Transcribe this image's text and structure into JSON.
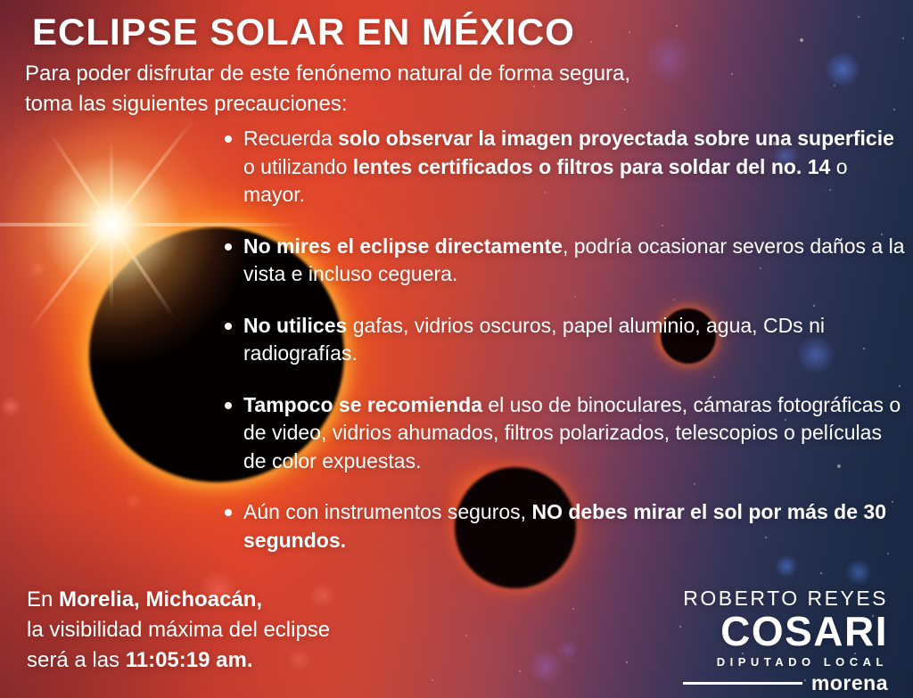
{
  "poster": {
    "title": "ECLIPSE SOLAR EN MÉXICO",
    "intro_lines": [
      "Para poder disfrutar de este fenónemo natural de forma segura,",
      "toma las siguientes precauciones:"
    ],
    "bullets": [
      {
        "segments": [
          {
            "text": "Recuerda ",
            "bold": false
          },
          {
            "text": "solo observar la imagen proyectada sobre una superficie",
            "bold": true
          },
          {
            "text": " o utilizando ",
            "bold": false
          },
          {
            "text": "lentes certificados o filtros para soldar del no. 14",
            "bold": true
          },
          {
            "text": " o mayor.",
            "bold": false
          }
        ]
      },
      {
        "segments": [
          {
            "text": "No mires el eclipse directamente",
            "bold": true
          },
          {
            "text": ", podría ocasionar severos daños a la vista e incluso ceguera.",
            "bold": false
          }
        ]
      },
      {
        "segments": [
          {
            "text": "No utilices",
            "bold": true
          },
          {
            "text": " gafas, vidrios oscuros, papel aluminio, agua, CDs ni radiografías.",
            "bold": false
          }
        ]
      },
      {
        "segments": [
          {
            "text": "Tampoco se recomienda",
            "bold": true
          },
          {
            "text": " el uso de binoculares, cámaras fotográficas o de video, vidrios ahumados, filtros polarizados, telescopios o películas de color expuestas.",
            "bold": false
          }
        ]
      },
      {
        "segments": [
          {
            "text": "Aún con instrumentos seguros, ",
            "bold": false
          },
          {
            "text": "NO debes mirar el sol por más de 30 segundos.",
            "bold": true
          }
        ]
      }
    ],
    "footer_left_lines": [
      {
        "segments": [
          {
            "text": "En ",
            "bold": false
          },
          {
            "text": "Morelia, Michoacán,",
            "bold": true
          }
        ]
      },
      {
        "segments": [
          {
            "text": "la visibilidad máxima del eclipse",
            "bold": false
          }
        ]
      },
      {
        "segments": [
          {
            "text": "será a las ",
            "bold": false
          },
          {
            "text": "11:05:19 am.",
            "bold": true
          }
        ]
      }
    ],
    "credit": {
      "name_top": "ROBERTO REYES",
      "name_main": "COSARI",
      "role": "DIPUTADO LOCAL",
      "party": "morena"
    },
    "colors": {
      "text": "#ffffff",
      "red_bright": "#dc422e",
      "maroon_corner": "#8e3038",
      "navy": "#1d2b47",
      "corona_orange": "#ff7a1e",
      "corona_yellow": "#ffd24a",
      "purple_glow": "#7a4f8f"
    }
  }
}
